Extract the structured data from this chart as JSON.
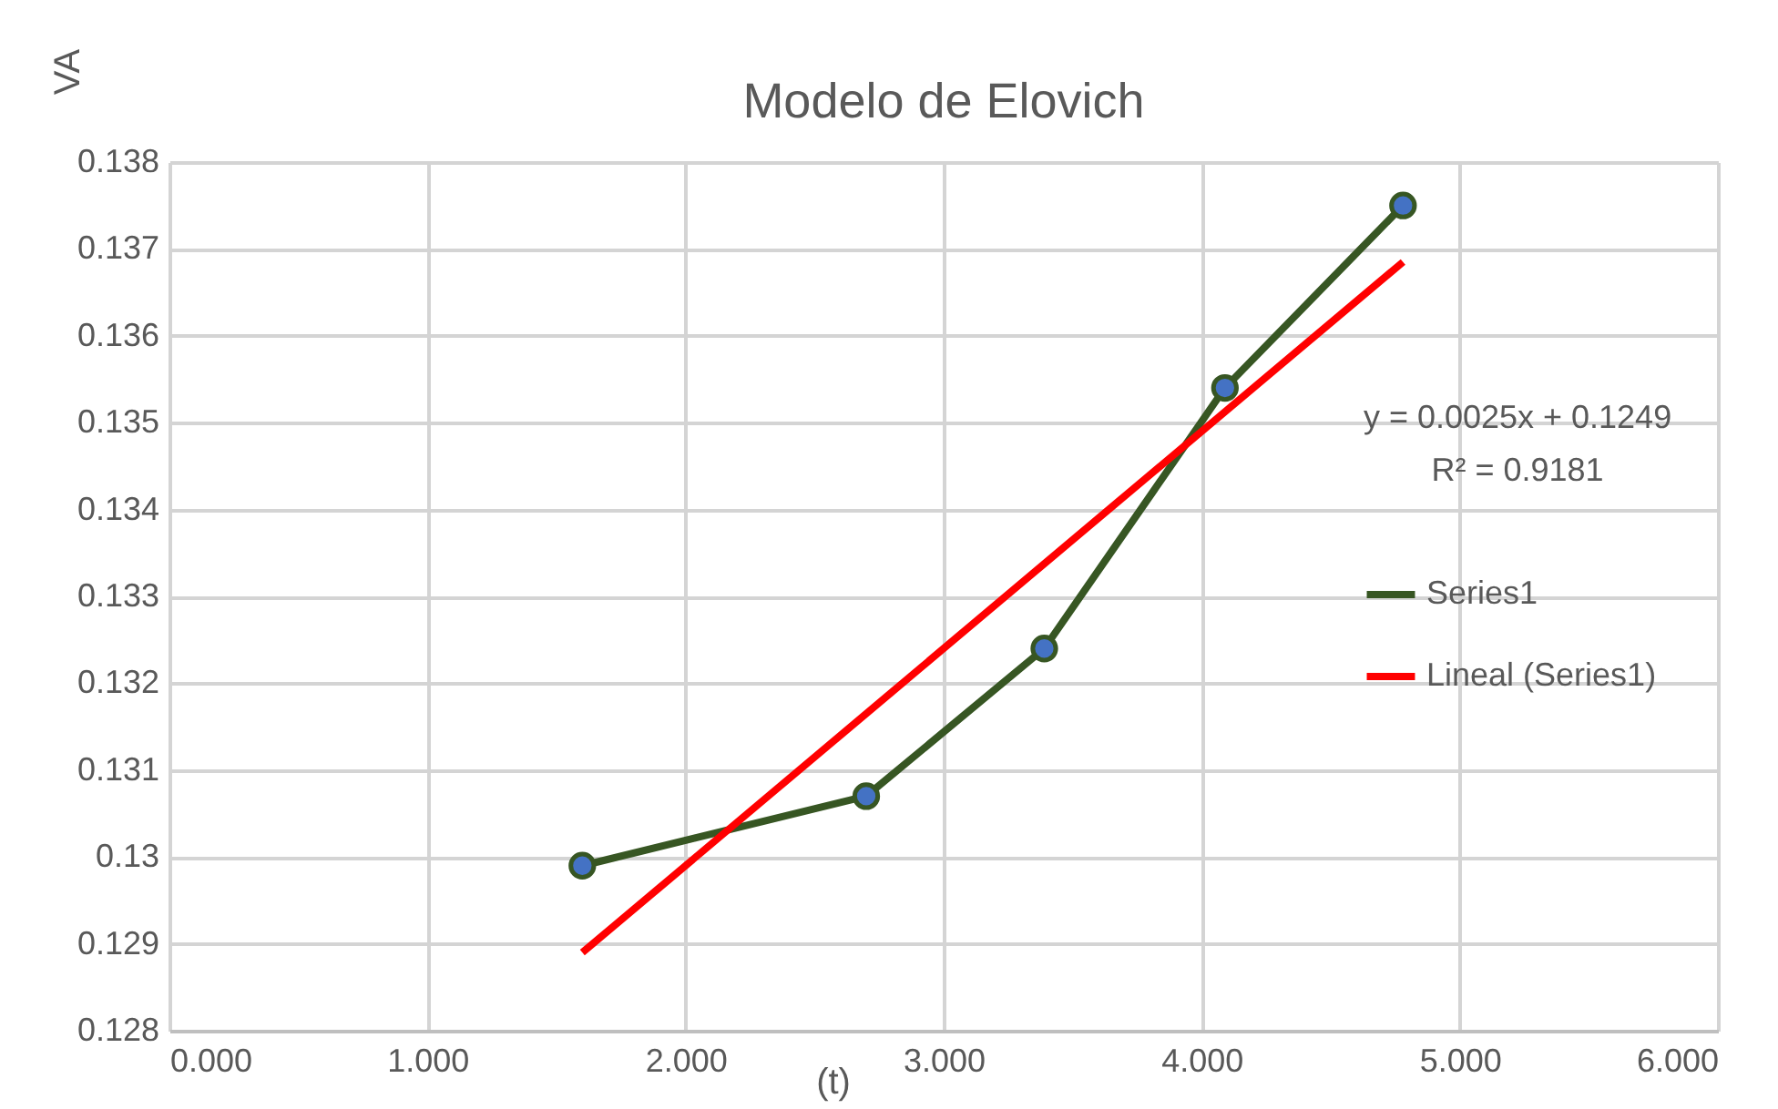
{
  "chart_data": {
    "type": "line",
    "title": "Modelo de Elovich",
    "xlabel": "(t)",
    "ylabel": "VA",
    "xlim": [
      0,
      6
    ],
    "xticks": [
      {
        "value": 0,
        "label": "0.000"
      },
      {
        "value": 1,
        "label": "1.000"
      },
      {
        "value": 2,
        "label": "2.000"
      },
      {
        "value": 3,
        "label": "3.000"
      },
      {
        "value": 4,
        "label": "4.000"
      },
      {
        "value": 5,
        "label": "5.000"
      },
      {
        "value": 6,
        "label": "6.000"
      }
    ],
    "ylim": [
      0.128,
      0.138
    ],
    "yticks": [
      0.128,
      0.129,
      0.13,
      0.131,
      0.132,
      0.133,
      0.134,
      0.135,
      0.136,
      0.137,
      0.138
    ],
    "grid": true,
    "legend": "right",
    "line_style": "solid",
    "annotations": [
      "y = 0.0025x + 0.1249",
      "R² = 0.9181"
    ],
    "series": [
      {
        "name": "Series1",
        "marker": "circle",
        "color": "#375623",
        "x": [
          1.6,
          2.7,
          3.39,
          4.09,
          4.78
        ],
        "values": [
          0.1299,
          0.1307,
          0.1324,
          0.1354,
          0.1375
        ]
      },
      {
        "name": "Lineal (Series1)",
        "marker": "none",
        "color": "#ff0000",
        "x": [
          1.6,
          4.78
        ],
        "values": [
          0.1289,
          0.13685
        ]
      }
    ]
  }
}
